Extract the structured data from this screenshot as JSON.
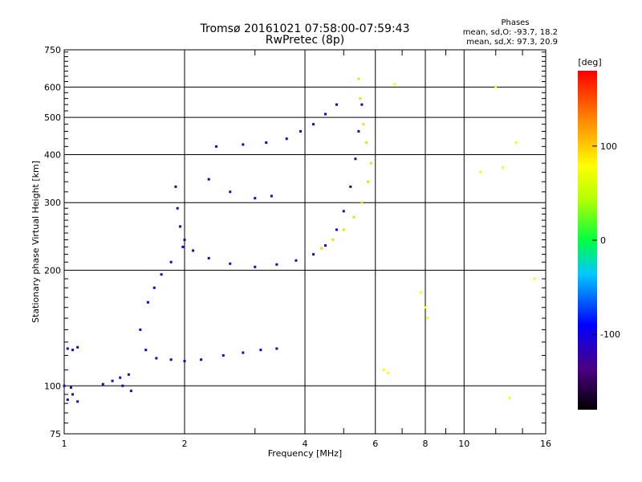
{
  "chart_data": {
    "type": "scatter",
    "title": "Tromsø 20161021 07:58:00-07:59:43",
    "subtitle": "RwPretec (8p)",
    "xlabel": "Frequency [MHz]",
    "ylabel": "Stationary phase Virtual Height [km]",
    "x_scale": "log",
    "y_scale": "log",
    "xlim": [
      1,
      16
    ],
    "ylim": [
      75,
      750
    ],
    "x_ticks": [
      1,
      2,
      4,
      6,
      8,
      10,
      16
    ],
    "x_tick_labels": [
      "1",
      "2",
      "4",
      "6",
      "8",
      "10",
      "16"
    ],
    "y_ticks": [
      75,
      100,
      200,
      300,
      400,
      500,
      600,
      750
    ],
    "y_tick_labels": [
      "75",
      "100",
      "200",
      "300",
      "400",
      "500",
      "600",
      "750"
    ],
    "grid": true,
    "legend": {
      "heading": "Phases",
      "lines": [
        "mean, sd,O: -93.7, 18.2",
        "mean, sd,X:  97.3, 20.9"
      ],
      "placement": "top-right"
    },
    "colorbar": {
      "label": "[deg]",
      "range": [
        -180,
        180
      ],
      "ticks": [
        100,
        0,
        -100
      ],
      "tick_labels": [
        "100",
        "0",
        "-100"
      ]
    },
    "traces": [
      {
        "id": "E-layer echo",
        "color_deg": -110,
        "points": [
          [
            1.02,
            92
          ],
          [
            1.05,
            95
          ],
          [
            1.08,
            91
          ],
          [
            1.0,
            100
          ],
          [
            1.04,
            99
          ],
          [
            1.25,
            101
          ],
          [
            1.32,
            103
          ],
          [
            1.38,
            105
          ],
          [
            1.45,
            107
          ],
          [
            1.4,
            100
          ],
          [
            1.47,
            97
          ]
        ]
      },
      {
        "id": "E-trace lower",
        "color_deg": -105,
        "points": [
          [
            1.02,
            125
          ],
          [
            1.05,
            124
          ],
          [
            1.08,
            126
          ],
          [
            1.6,
            124
          ],
          [
            1.7,
            118
          ],
          [
            1.85,
            117
          ],
          [
            2.0,
            116
          ],
          [
            2.2,
            117
          ],
          [
            2.5,
            120
          ],
          [
            2.8,
            122
          ],
          [
            3.1,
            124
          ],
          [
            3.4,
            125
          ]
        ]
      },
      {
        "id": "Es rising",
        "color_deg": -100,
        "points": [
          [
            1.55,
            140
          ],
          [
            1.62,
            165
          ],
          [
            1.68,
            180
          ],
          [
            1.75,
            195
          ],
          [
            1.85,
            210
          ],
          [
            1.98,
            230
          ]
        ]
      },
      {
        "id": "F1 cusp",
        "color_deg": -110,
        "points": [
          [
            1.9,
            330
          ],
          [
            1.92,
            290
          ],
          [
            1.95,
            260
          ],
          [
            2.0,
            240
          ],
          [
            2.1,
            225
          ],
          [
            2.3,
            215
          ],
          [
            2.6,
            208
          ],
          [
            3.0,
            204
          ],
          [
            3.4,
            207
          ],
          [
            3.8,
            212
          ],
          [
            4.2,
            220
          ],
          [
            4.5,
            232
          ],
          [
            4.8,
            255
          ],
          [
            5.0,
            285
          ],
          [
            5.2,
            330
          ],
          [
            5.35,
            390
          ],
          [
            5.45,
            460
          ],
          [
            5.55,
            540
          ]
        ]
      },
      {
        "id": "X-mode trace",
        "color_deg": 95,
        "points": [
          [
            4.4,
            228
          ],
          [
            4.7,
            240
          ],
          [
            5.0,
            255
          ],
          [
            5.3,
            275
          ],
          [
            5.55,
            300
          ],
          [
            5.75,
            340
          ],
          [
            5.85,
            380
          ],
          [
            5.7,
            430
          ],
          [
            5.6,
            480
          ],
          [
            5.5,
            560
          ],
          [
            5.45,
            630
          ]
        ]
      },
      {
        "id": "F2 upper",
        "color_deg": -100,
        "points": [
          [
            2.3,
            345
          ],
          [
            2.6,
            320
          ],
          [
            3.0,
            308
          ],
          [
            3.3,
            312
          ],
          [
            2.4,
            420
          ],
          [
            2.8,
            425
          ],
          [
            3.2,
            430
          ],
          [
            3.6,
            440
          ],
          [
            3.9,
            460
          ],
          [
            4.2,
            480
          ],
          [
            4.5,
            510
          ],
          [
            4.8,
            540
          ]
        ]
      },
      {
        "id": "Scattered",
        "color_deg": 80,
        "points": [
          [
            6.3,
            110
          ],
          [
            6.45,
            108
          ],
          [
            7.8,
            175
          ],
          [
            8.0,
            160
          ],
          [
            8.1,
            150
          ],
          [
            6.7,
            610
          ],
          [
            12.0,
            600
          ],
          [
            13.5,
            430
          ],
          [
            12.5,
            370
          ],
          [
            11.0,
            360
          ],
          [
            13.0,
            93
          ],
          [
            15.0,
            190
          ]
        ]
      }
    ]
  }
}
